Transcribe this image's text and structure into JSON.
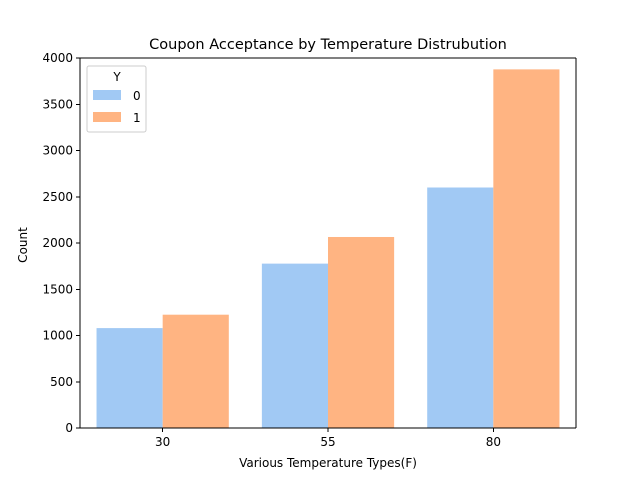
{
  "chart_data": {
    "type": "bar",
    "title": "Coupon Acceptance by Temperature Distrubution",
    "xlabel": "Various Temperature Types(F)",
    "ylabel": "Count",
    "categories": [
      "30",
      "55",
      "80"
    ],
    "series": [
      {
        "name": "0",
        "values": [
          1080,
          1777,
          2600
        ],
        "color": "#a1c9f4"
      },
      {
        "name": "1",
        "values": [
          1225,
          2065,
          3877
        ],
        "color": "#ffb482"
      }
    ],
    "ylim": [
      0,
      4000
    ],
    "yticks": [
      "0",
      "500",
      "1000",
      "1500",
      "2000",
      "2500",
      "3000",
      "3500",
      "4000"
    ],
    "legend": {
      "title": "Y",
      "placement": "top-left"
    },
    "grid": false
  }
}
